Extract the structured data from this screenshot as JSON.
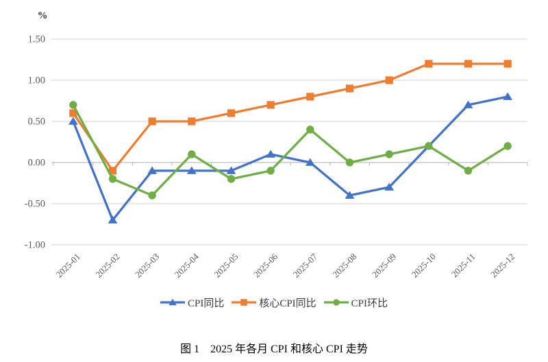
{
  "figure": {
    "caption": "图 1　2025 年各月 CPI 和核心 CPI 走势"
  },
  "chart_data": {
    "type": "line",
    "unit_label": "%",
    "categories": [
      "2025-01",
      "2025-02",
      "2025-03",
      "2025-04",
      "2025-05",
      "2025-06",
      "2025-07",
      "2025-08",
      "2025-09",
      "2025-10",
      "2025-11",
      "2025-12"
    ],
    "series": [
      {
        "name": "CPI同比",
        "marker": "triangle",
        "color": "#4472C4",
        "values": [
          0.5,
          -0.7,
          -0.1,
          -0.1,
          -0.1,
          0.1,
          0.0,
          -0.4,
          -0.3,
          0.2,
          0.7,
          0.8
        ]
      },
      {
        "name": "核心CPI同比",
        "marker": "square",
        "color": "#ED7D31",
        "values": [
          0.6,
          -0.1,
          0.5,
          0.5,
          0.6,
          0.7,
          0.8,
          0.9,
          1.0,
          1.2,
          1.2,
          1.2
        ]
      },
      {
        "name": "CPI环比",
        "marker": "circle",
        "color": "#70AD47",
        "values": [
          0.7,
          -0.2,
          -0.4,
          0.1,
          -0.2,
          -0.1,
          0.4,
          0.0,
          0.1,
          0.2,
          -0.1,
          0.2
        ]
      }
    ],
    "yticks": [
      1.5,
      1.0,
      0.5,
      0.0,
      -0.5,
      -1.0
    ],
    "ytick_labels": [
      "1.50",
      "1.00",
      "0.50",
      "0.00",
      "-0.50",
      "-1.00"
    ],
    "ylim": [
      -1.0,
      1.5
    ],
    "grid": true,
    "legend_position": "bottom"
  },
  "colors": {
    "gridline": "#D9D9D9",
    "axis": "#BFBFBF",
    "tick_text": "#595959",
    "caption_text": "#000000"
  }
}
